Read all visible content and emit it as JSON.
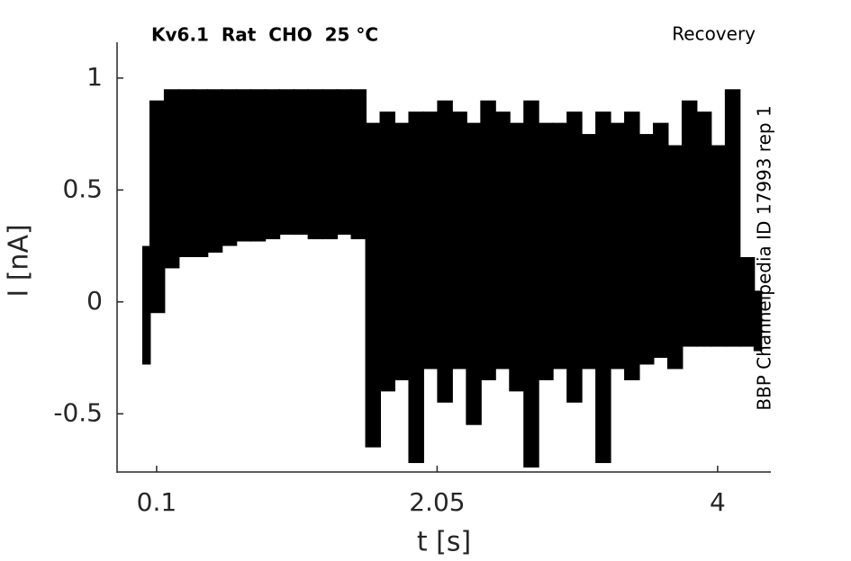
{
  "chart_data": {
    "type": "band",
    "title": "Kv6.1  Rat  CHO  25 °C",
    "subtitle": "Recovery",
    "annotation": "BBP Channelpedia ID 17993 rep 1",
    "xlabel": "t [s]",
    "ylabel": "I [nA]",
    "xlim": [
      -0.175,
      4.37
    ],
    "ylim": [
      -0.76,
      1.16
    ],
    "xticks": [
      0.1,
      2.05,
      4
    ],
    "yticks": [
      -0.5,
      0,
      0.5,
      1
    ],
    "x": [
      0,
      0.1,
      0.2,
      0.3,
      0.4,
      0.5,
      0.6,
      0.7,
      0.8,
      0.9,
      1.0,
      1.1,
      1.2,
      1.3,
      1.4,
      1.5,
      1.6,
      1.7,
      1.8,
      1.9,
      2.0,
      2.1,
      2.2,
      2.3,
      2.4,
      2.5,
      2.6,
      2.7,
      2.8,
      2.9,
      3.0,
      3.1,
      3.2,
      3.3,
      3.4,
      3.5,
      3.6,
      3.7,
      3.8,
      3.9,
      4.0,
      4.1,
      4.2,
      4.3
    ],
    "series": [
      {
        "color": "#000000",
        "values": [
          0.25,
          0.9,
          0.95,
          0.95,
          0.95,
          0.95,
          0.95,
          0.95,
          0.95,
          0.95,
          0.95,
          0.95,
          0.95,
          0.95,
          0.95,
          0.95,
          0.8,
          0.85,
          0.8,
          0.85,
          0.85,
          0.9,
          0.85,
          0.8,
          0.9,
          0.85,
          0.8,
          0.9,
          0.8,
          0.8,
          0.85,
          0.75,
          0.85,
          0.8,
          0.85,
          0.75,
          0.8,
          0.7,
          0.9,
          0.85,
          0.7,
          0.95,
          0.2,
          0.05
        ]
      },
      {
        "color": "#000000",
        "values": [
          -0.28,
          -0.05,
          0.15,
          0.2,
          0.2,
          0.22,
          0.25,
          0.27,
          0.27,
          0.28,
          0.3,
          0.3,
          0.28,
          0.28,
          0.3,
          0.28,
          -0.65,
          -0.4,
          -0.35,
          -0.72,
          -0.3,
          -0.45,
          -0.3,
          -0.55,
          -0.35,
          -0.3,
          -0.4,
          -0.74,
          -0.35,
          -0.3,
          -0.45,
          -0.3,
          -0.72,
          -0.3,
          -0.35,
          -0.28,
          -0.25,
          -0.3,
          -0.2,
          -0.2,
          -0.2,
          -0.2,
          -0.2,
          -0.22
        ]
      }
    ]
  }
}
